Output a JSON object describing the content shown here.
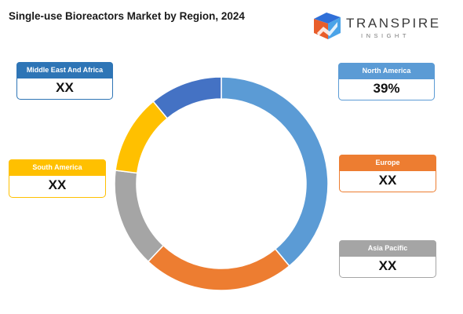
{
  "header": {
    "title": "Single-use Bioreactors Market by Region, 2024"
  },
  "logo": {
    "name": "TRANSPIRE",
    "sub": "INSIGHT"
  },
  "chart_data": {
    "type": "pie",
    "title": "Single-use Bioreactors Market by Region, 2024",
    "categories": [
      "North America",
      "Europe",
      "Asia Pacific",
      "South America",
      "Middle East And Africa"
    ],
    "values": [
      39,
      23,
      15,
      12,
      11
    ],
    "display_values": [
      "39%",
      "XX",
      "XX",
      "XX",
      "XX"
    ],
    "colors": [
      "#5b9bd5",
      "#ed7d31",
      "#a5a5a5",
      "#ffc000",
      "#4472c4"
    ],
    "start_angle_deg": 0,
    "direction": "clockwise",
    "donut": true
  },
  "callouts": {
    "north_america": {
      "label": "North America",
      "value": "39%",
      "color": "#5b9bd5"
    },
    "europe": {
      "label": "Europe",
      "value": "XX",
      "color": "#ed7d31"
    },
    "asia_pacific": {
      "label": "Asia Pacific",
      "value": "XX",
      "color": "#a5a5a5"
    },
    "south_america": {
      "label": "South America",
      "value": "XX",
      "color": "#ffc000"
    },
    "mea": {
      "label": "Middle East And Africa",
      "value": "XX",
      "color": "#2e75b6"
    }
  }
}
